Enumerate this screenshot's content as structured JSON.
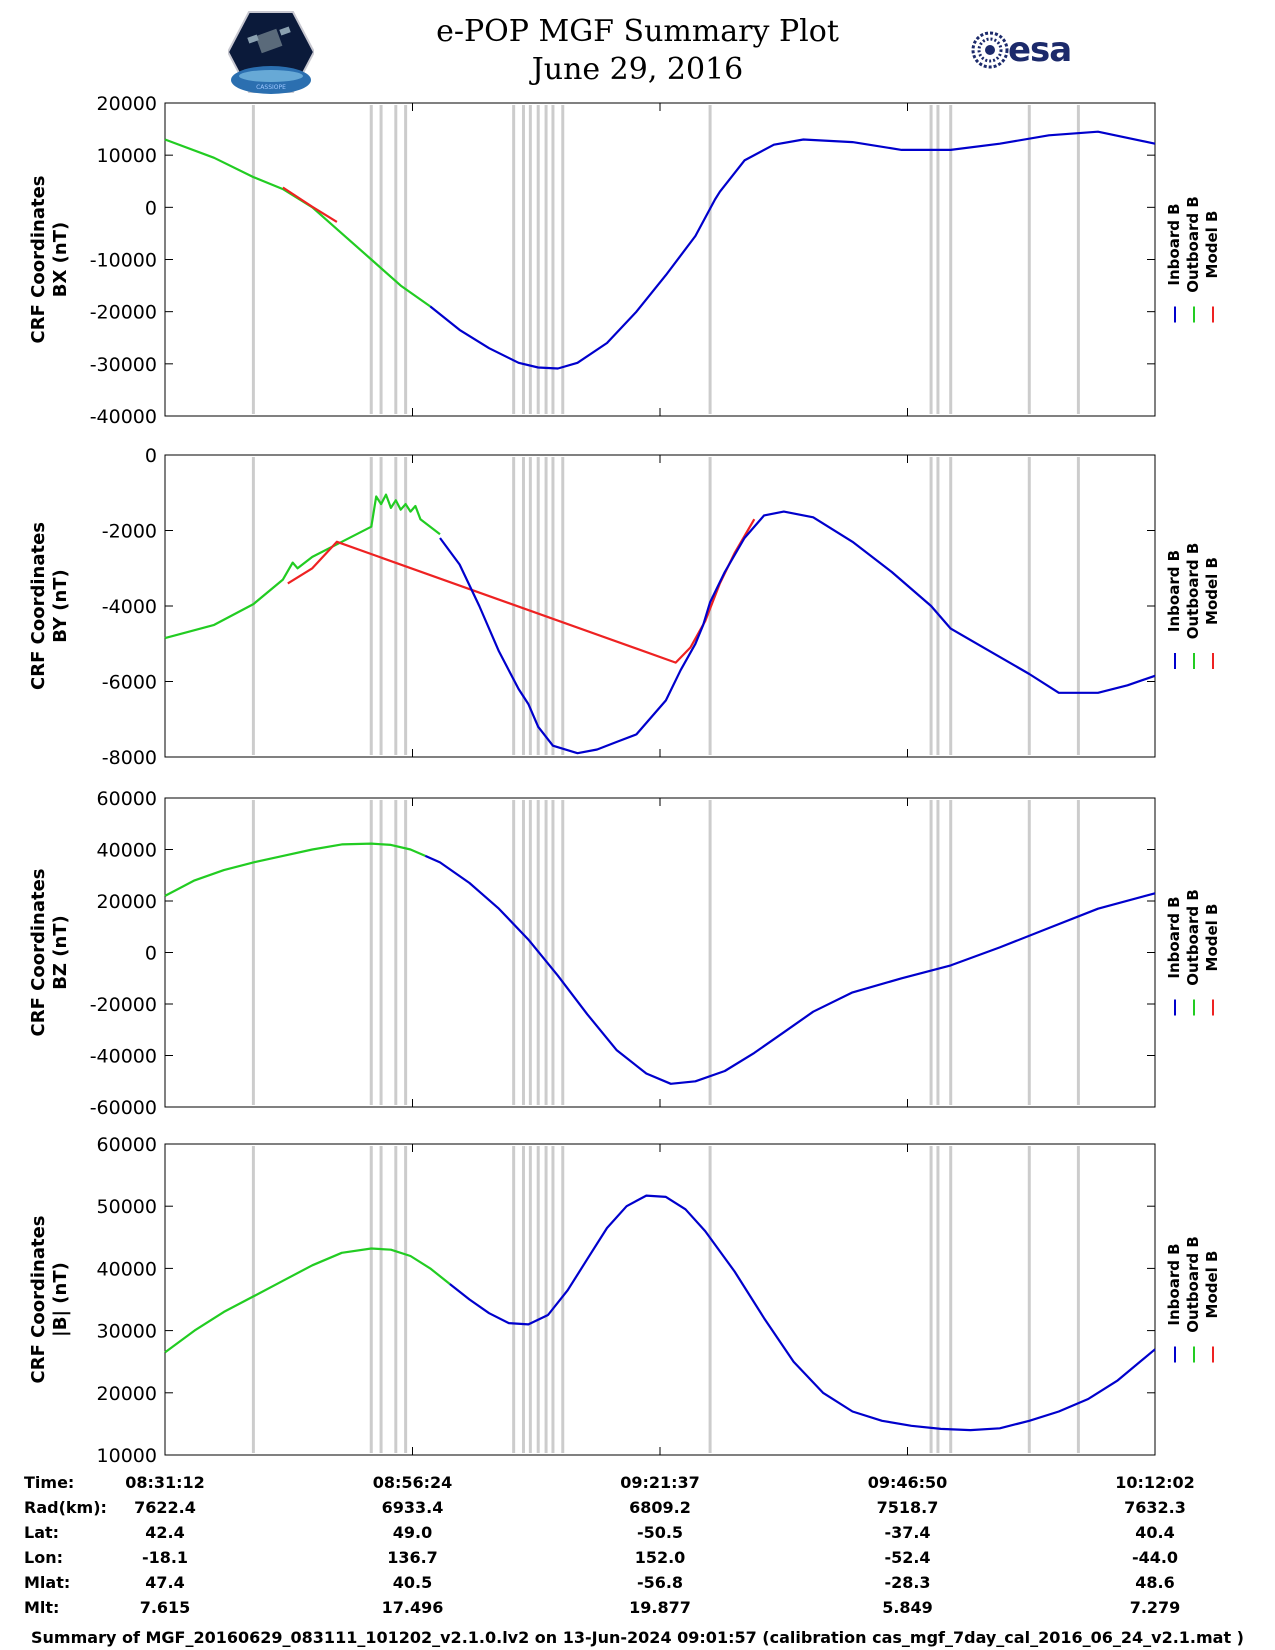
{
  "title_line1": "e-POP MGF Summary Plot",
  "title_line2": "June 29, 2016",
  "logo_left_text": "CASSIOPE",
  "logo_right_text": "esa",
  "legend": [
    "Inboard B",
    "Outboard B",
    "Model B"
  ],
  "colors": {
    "inboard": "#0000cc",
    "outboard": "#22cc22",
    "model": "#ee2222",
    "gap": "#cccccc"
  },
  "footer": "Summary of MGF_20160629_083111_101202_v2.1.0.lv2 on 13-Jun-2024 09:01:57 (calibration cas_mgf_7day_cal_2016_06_24_v2.1.mat )",
  "info_table": {
    "row_labels": [
      "Time:",
      "Rad(km):",
      "Lat:",
      "Lon:",
      "Mlat:",
      "Mlt:"
    ],
    "columns": [
      [
        "08:31:12",
        "7622.4",
        "42.4",
        "-18.1",
        "47.4",
        "7.615"
      ],
      [
        "08:56:24",
        "6933.4",
        "49.0",
        "136.7",
        "40.5",
        "17.496"
      ],
      [
        "09:21:37",
        "6809.2",
        "-50.5",
        "152.0",
        "-56.8",
        "19.877"
      ],
      [
        "09:46:50",
        "7518.7",
        "-37.4",
        "-52.4",
        "-28.3",
        "5.849"
      ],
      [
        "10:12:02",
        "7632.3",
        "40.4",
        "-44.0",
        "48.6",
        "7.279"
      ]
    ]
  },
  "chart_data": [
    {
      "type": "line",
      "ylabel": [
        "CRF Coordinates",
        "BX (nT)"
      ],
      "ylim": [
        -40000,
        20000
      ],
      "yticks": [
        "20000",
        "10000",
        "0",
        "-10000",
        "-20000",
        "-30000",
        "-40000"
      ],
      "x_ticks_minutes": [
        0,
        25.2,
        50.4,
        75.6,
        100.8
      ],
      "gap_markers_minutes": [
        9,
        21,
        22,
        23.5,
        24.5,
        35.5,
        36.5,
        37.2,
        38,
        38.8,
        39.5,
        40.5,
        55.5,
        78,
        78.7,
        80,
        88,
        93
      ],
      "series": [
        {
          "name": "Outboard B",
          "x": [
            0,
            5,
            9,
            12,
            15,
            18,
            21,
            24,
            27
          ],
          "values": [
            13000,
            9500,
            5800,
            3500,
            0,
            -5000,
            -10000,
            -15000,
            -19000
          ]
        },
        {
          "name": "Model B",
          "x": [
            12,
            15,
            17.5
          ],
          "values": [
            3800,
            100,
            -2800
          ]
        },
        {
          "name": "Inboard B",
          "x": [
            27,
            30,
            33,
            36,
            38,
            40,
            42,
            45,
            48,
            51,
            54,
            56,
            56.5,
            59,
            62,
            65,
            70,
            75,
            80,
            85,
            90,
            95,
            100.8
          ],
          "values": [
            -19000,
            -23500,
            -27000,
            -29800,
            -30700,
            -30900,
            -29800,
            -26000,
            -20000,
            -13000,
            -5500,
            1500,
            3000,
            9000,
            12000,
            13000,
            12500,
            11000,
            11000,
            12200,
            13800,
            14500,
            12200
          ]
        }
      ]
    },
    {
      "type": "line",
      "ylabel": [
        "CRF Coordinates",
        "BY (nT)"
      ],
      "ylim": [
        -8000,
        0
      ],
      "yticks": [
        "0",
        "-2000",
        "-4000",
        "-6000",
        "-8000"
      ],
      "x_ticks_minutes": [
        0,
        25.2,
        50.4,
        75.6,
        100.8
      ],
      "gap_markers_minutes": [
        9,
        21,
        22,
        23.5,
        24.5,
        35.5,
        36.5,
        37.2,
        38,
        38.8,
        39.5,
        40.5,
        55.5,
        78,
        78.7,
        80,
        88,
        93
      ],
      "series": [
        {
          "name": "Outboard B",
          "x": [
            0,
            5,
            9,
            12,
            13,
            13.5,
            15,
            18,
            21,
            21.5,
            22,
            22.5,
            23,
            23.5,
            24,
            24.5,
            25,
            25.5,
            26,
            27,
            28
          ],
          "values": [
            -4850,
            -4500,
            -3950,
            -3300,
            -2850,
            -3000,
            -2700,
            -2300,
            -1900,
            -1100,
            -1300,
            -1050,
            -1400,
            -1200,
            -1450,
            -1300,
            -1500,
            -1350,
            -1700,
            -1900,
            -2100
          ]
        },
        {
          "name": "Model B",
          "x": [
            12.5,
            15,
            17.5,
            52,
            53.5,
            55,
            56.5,
            58,
            60
          ],
          "values": [
            -3400,
            -3000,
            -2300,
            -5500,
            -5100,
            -4400,
            -3400,
            -2600,
            -1700
          ]
        },
        {
          "name": "Inboard B",
          "x": [
            28,
            30,
            32,
            34,
            36,
            37,
            38,
            39.5,
            42,
            44,
            46,
            48,
            51,
            52.5,
            54,
            54.8,
            55.5,
            57,
            59,
            61,
            63,
            66,
            70,
            74,
            78,
            80,
            84,
            88,
            91,
            95,
            98,
            100.8
          ],
          "values": [
            -2200,
            -2900,
            -4000,
            -5200,
            -6200,
            -6600,
            -7200,
            -7700,
            -7900,
            -7800,
            -7600,
            -7400,
            -6500,
            -5700,
            -5000,
            -4500,
            -3900,
            -3100,
            -2200,
            -1600,
            -1500,
            -1650,
            -2300,
            -3100,
            -4000,
            -4600,
            -5200,
            -5800,
            -6300,
            -6300,
            -6100,
            -5850
          ]
        }
      ]
    },
    {
      "type": "line",
      "ylabel": [
        "CRF Coordinates",
        "BZ (nT)"
      ],
      "ylim": [
        -60000,
        60000
      ],
      "yticks": [
        "60000",
        "40000",
        "20000",
        "0",
        "-20000",
        "-40000",
        "-60000"
      ],
      "x_ticks_minutes": [
        0,
        25.2,
        50.4,
        75.6,
        100.8
      ],
      "gap_markers_minutes": [
        9,
        21,
        22,
        23.5,
        24.5,
        35.5,
        36.5,
        37.2,
        38,
        38.8,
        39.5,
        40.5,
        55.5,
        78,
        78.7,
        80,
        88,
        93
      ],
      "series": [
        {
          "name": "Outboard B",
          "x": [
            0,
            3,
            6,
            9,
            12,
            15,
            18,
            21,
            23,
            25,
            26.5
          ],
          "values": [
            22000,
            28000,
            32000,
            35000,
            37500,
            40000,
            42000,
            42300,
            41800,
            40000,
            37500
          ]
        },
        {
          "name": "Inboard B",
          "x": [
            26.5,
            28,
            31,
            34,
            37,
            40,
            43,
            46,
            49,
            51.5,
            54,
            57,
            60,
            63,
            66,
            70,
            75,
            80,
            85,
            90,
            95,
            100.8
          ],
          "values": [
            37500,
            35000,
            27000,
            17000,
            5000,
            -9000,
            -24000,
            -38000,
            -47000,
            -51000,
            -50000,
            -46000,
            -39000,
            -31000,
            -23000,
            -15500,
            -10000,
            -5000,
            2000,
            9500,
            17000,
            23000
          ]
        }
      ]
    },
    {
      "type": "line",
      "ylabel": [
        "CRF Coordinates",
        "|B| (nT)"
      ],
      "ylim": [
        10000,
        60000
      ],
      "yticks": [
        "60000",
        "50000",
        "40000",
        "30000",
        "20000",
        "10000"
      ],
      "x_ticks_minutes": [
        0,
        25.2,
        50.4,
        75.6,
        100.8
      ],
      "gap_markers_minutes": [
        9,
        21,
        22,
        23.5,
        24.5,
        35.5,
        36.5,
        37.2,
        38,
        38.8,
        39.5,
        40.5,
        55.5,
        78,
        78.7,
        80,
        88,
        93
      ],
      "series": [
        {
          "name": "Outboard B",
          "x": [
            0,
            3,
            6,
            9,
            12,
            15,
            18,
            21,
            23,
            25,
            27,
            29
          ],
          "values": [
            26500,
            30000,
            33000,
            35500,
            38000,
            40500,
            42500,
            43200,
            43000,
            42000,
            40000,
            37500
          ]
        },
        {
          "name": "Inboard B",
          "x": [
            29,
            31,
            33,
            35,
            37,
            39,
            41,
            43,
            45,
            47,
            49,
            51,
            53,
            55,
            58,
            61,
            64,
            67,
            70,
            73,
            76,
            79,
            82,
            85,
            88,
            91,
            94,
            97,
            100.8
          ],
          "values": [
            37500,
            35000,
            32800,
            31200,
            31000,
            32500,
            36500,
            41500,
            46500,
            50000,
            51700,
            51500,
            49500,
            46000,
            39500,
            32000,
            25000,
            20000,
            17000,
            15500,
            14700,
            14200,
            14000,
            14300,
            15500,
            17000,
            19000,
            22000,
            27000
          ]
        }
      ]
    }
  ]
}
